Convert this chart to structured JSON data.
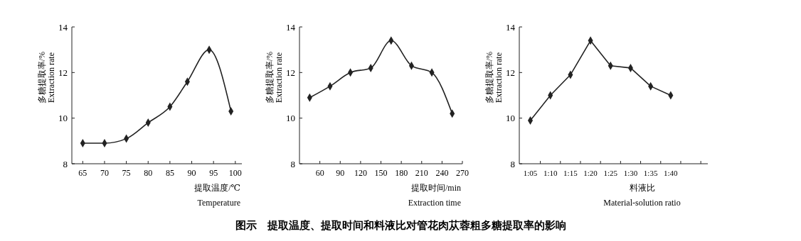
{
  "chart_data": [
    {
      "type": "line",
      "xlabel": "提取温度/℃\nTemperature",
      "ylabel": "多糖提取率/%\nExtraction rate",
      "x": [
        65,
        70,
        75,
        80,
        85,
        89,
        94,
        99
      ],
      "values": [
        8.9,
        8.9,
        9.1,
        9.8,
        10.5,
        11.6,
        13.0,
        10.3
      ],
      "color": "#222222",
      "xlim": [
        62.5,
        101.5
      ],
      "xticks": [
        65,
        70,
        75,
        80,
        85,
        90,
        95,
        100
      ],
      "ylim": [
        8,
        14
      ],
      "yticks": [
        8,
        10,
        12,
        14
      ],
      "marker": "diamond",
      "line_style": "solid",
      "annotations": [
        "图示　提取温度、提取时间和料液比对管花肉苁蓉粗多糖提取率的影响"
      ]
    },
    {
      "type": "line",
      "xlabel": "提取时间/min\nExtraction time",
      "ylabel": "多糖提取率/%\nExtraction rate",
      "x": [
        45,
        75,
        105,
        135,
        165,
        195,
        225,
        255
      ],
      "values": [
        10.9,
        11.4,
        12.0,
        12.2,
        13.4,
        12.3,
        12.0,
        10.2
      ],
      "color": "#222222",
      "xlim": [
        30,
        270
      ],
      "xticks": [
        60,
        90,
        120,
        150,
        180,
        210,
        240,
        270
      ],
      "ylim": [
        8,
        14
      ],
      "yticks": [
        8,
        10,
        12,
        14
      ],
      "marker": "diamond",
      "line_style": "solid"
    },
    {
      "type": "line",
      "xlabel": "料液比\nMaterial-solution ratio",
      "ylabel": "多糖提取率/%\nExtraction rate",
      "categories": [
        "1:05",
        "1:10",
        "1:15",
        "1:20",
        "1:25",
        "1:30",
        "1:35",
        "1:40"
      ],
      "values": [
        9.9,
        11.0,
        11.9,
        13.4,
        12.3,
        12.2,
        11.4,
        11.0
      ],
      "color": "#222222",
      "ylim": [
        8,
        14
      ],
      "yticks": [
        8,
        10,
        12,
        14
      ],
      "marker": "diamond",
      "line_style": "solid"
    }
  ]
}
